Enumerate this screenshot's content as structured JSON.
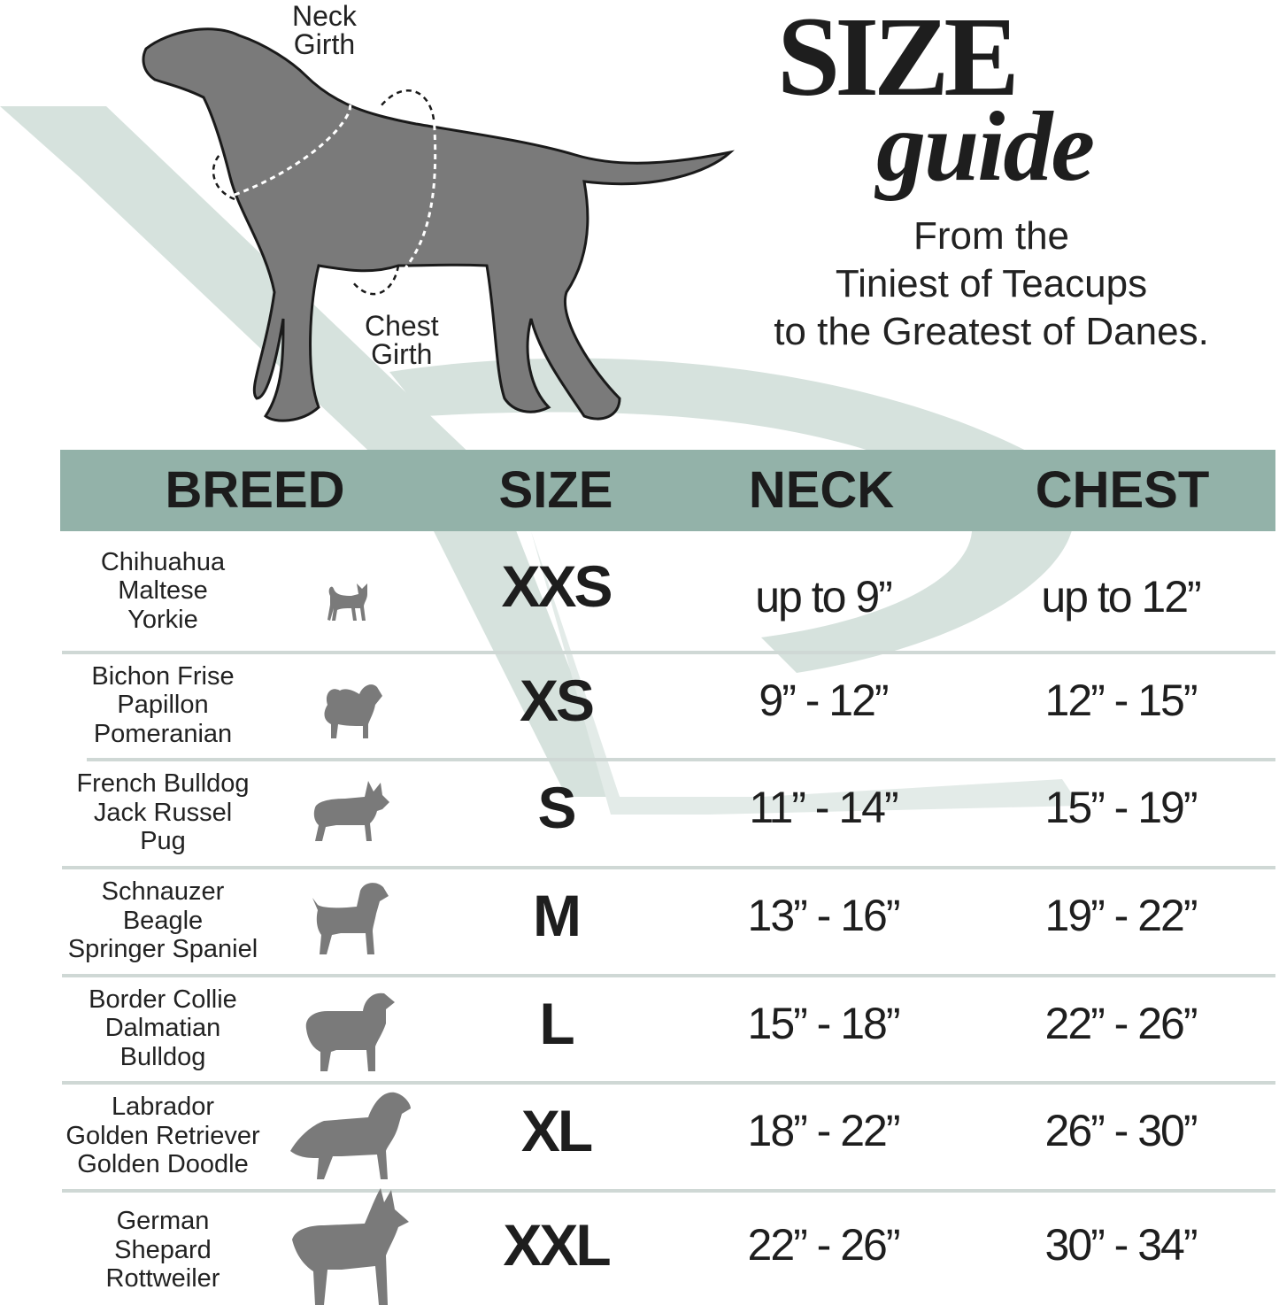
{
  "diagram": {
    "neck_label": [
      "Neck",
      "Girth"
    ],
    "chest_label": [
      "Chest",
      "Girth"
    ]
  },
  "title": {
    "line1": "SIZE",
    "line2": "guide"
  },
  "tagline": [
    "From the",
    "Tiniest of Teacups",
    "to the Greatest of Danes."
  ],
  "colors": {
    "header": "#93b2a9",
    "watermark": "#d6e2dd",
    "silhouette": "#7a7a7a",
    "separator": "#cfd8d5"
  },
  "table": {
    "headers": [
      "BREED",
      "SIZE",
      "NECK",
      "CHEST"
    ],
    "rows": [
      {
        "breeds": [
          "Chihuahua",
          "Maltese",
          "Yorkie"
        ],
        "icon": "chihuahua-silhouette-icon",
        "size": "XXS",
        "neck": "up to 9”",
        "chest": "up to 12”"
      },
      {
        "breeds": [
          "Bichon Frise",
          "Papillon",
          "Pomeranian"
        ],
        "icon": "pomeranian-silhouette-icon",
        "size": "XS",
        "neck": "9” - 12”",
        "chest": "12” - 15”"
      },
      {
        "breeds": [
          "French Bulldog",
          "Jack Russel",
          "Pug"
        ],
        "icon": "french-bulldog-silhouette-icon",
        "size": "S",
        "neck": "11” - 14”",
        "chest": "15” - 19”"
      },
      {
        "breeds": [
          "Schnauzer",
          "Beagle",
          "Springer Spaniel"
        ],
        "icon": "terrier-silhouette-icon",
        "size": "M",
        "neck": "13” - 16”",
        "chest": "19” - 22”"
      },
      {
        "breeds": [
          "Border Collie",
          "Dalmatian",
          "Bulldog"
        ],
        "icon": "collie-silhouette-icon",
        "size": "L",
        "neck": "15” - 18”",
        "chest": "22” - 26”"
      },
      {
        "breeds": [
          "Labrador",
          "Golden Retriever",
          "Golden Doodle"
        ],
        "icon": "retriever-silhouette-icon",
        "size": "XL",
        "neck": "18” - 22”",
        "chest": "26” - 30”"
      },
      {
        "breeds": [
          "German",
          "Shepard",
          "Rottweiler"
        ],
        "icon": "shepherd-silhouette-icon",
        "size": "XXL",
        "neck": "22” - 26”",
        "chest": "30” - 34”"
      }
    ]
  }
}
